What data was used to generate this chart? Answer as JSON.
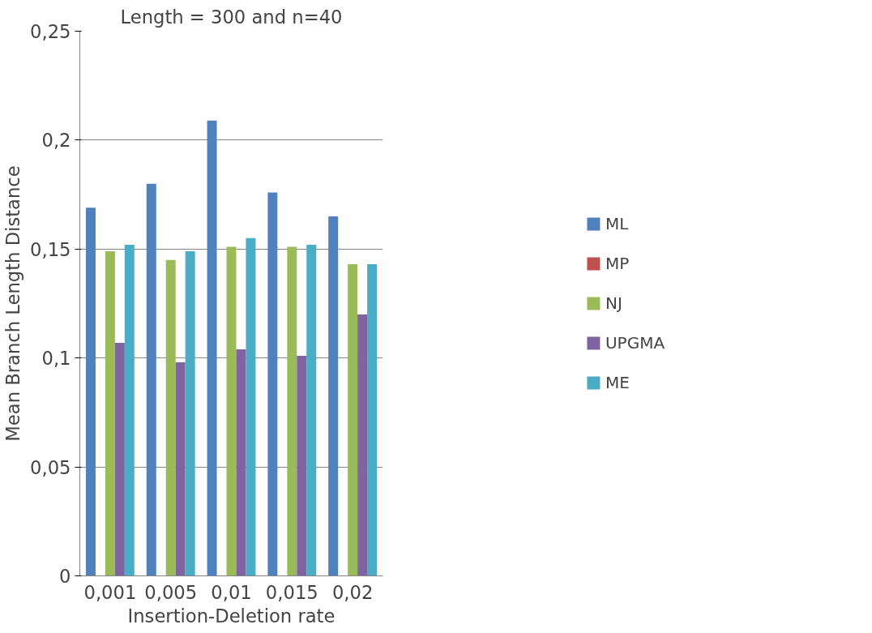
{
  "chart_data": {
    "type": "bar",
    "title": "Length = 300 and n=40",
    "xlabel": "Insertion-Deletion rate",
    "ylabel": "Mean Branch Length Distance",
    "categories": [
      "0,001",
      "0,005",
      "0,01",
      "0,015",
      "0,02"
    ],
    "series": [
      {
        "name": "ML",
        "color": "#4f81bd",
        "values": [
          0.169,
          0.18,
          0.209,
          0.176,
          0.165
        ]
      },
      {
        "name": "MP",
        "color": "#c0504d",
        "values": [
          0,
          0,
          0,
          0,
          0
        ]
      },
      {
        "name": "NJ",
        "color": "#9bbb59",
        "values": [
          0.149,
          0.145,
          0.151,
          0.151,
          0.143
        ]
      },
      {
        "name": "UPGMA",
        "color": "#8064a2",
        "values": [
          0.107,
          0.098,
          0.104,
          0.101,
          0.12
        ]
      },
      {
        "name": "ME",
        "color": "#4bacc6",
        "values": [
          0.152,
          0.149,
          0.155,
          0.152,
          0.143
        ]
      }
    ],
    "ylim": [
      0,
      0.25
    ],
    "yticks": [
      0,
      {
        "value": 0.05,
        "label": "0,05"
      },
      {
        "value": 0.1,
        "label": "0,1"
      },
      {
        "value": 0.15,
        "label": "0,15"
      },
      {
        "value": 0.2,
        "label": "0,2"
      },
      {
        "value": 0.25,
        "label": "0,25"
      }
    ],
    "grid": "y",
    "legend": "right"
  }
}
